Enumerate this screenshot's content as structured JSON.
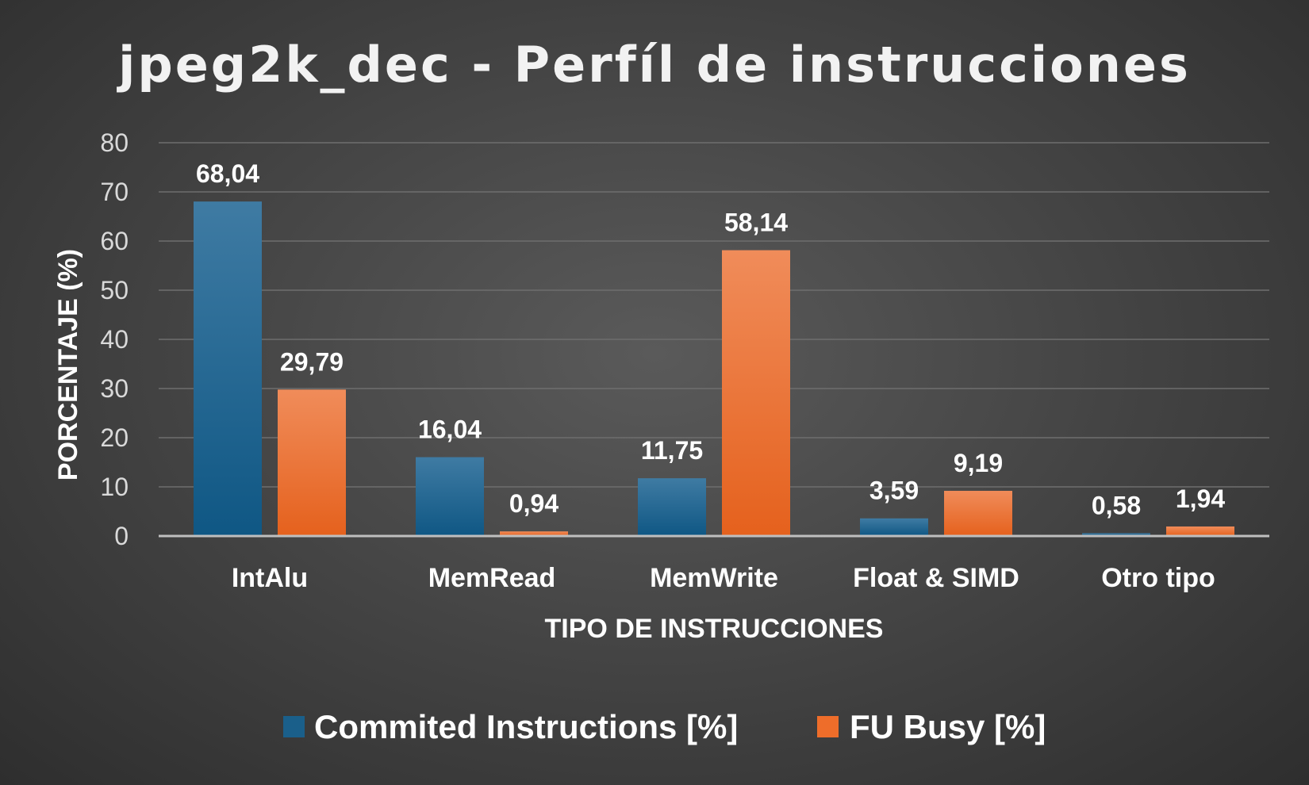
{
  "chart_data": {
    "type": "bar",
    "title": "jpeg2k_dec - Perfíl de instrucciones",
    "xlabel": "TIPO DE INSTRUCCIONES",
    "ylabel": "PORCENTAJE (%)",
    "ylim": [
      0,
      80
    ],
    "yticks": [
      "0",
      "10",
      "20",
      "30",
      "40",
      "50",
      "60",
      "70",
      "80"
    ],
    "categories": [
      "IntAlu",
      "MemRead",
      "MemWrite",
      "Float & SIMD",
      "Otro tipo"
    ],
    "series": [
      {
        "name": "Commited Instructions [%]",
        "values": [
          68.04,
          16.04,
          11.75,
          3.59,
          0.58
        ],
        "labels": [
          "68,04",
          "16,04",
          "11,75",
          "3,59",
          "0,58"
        ],
        "color": "#1a5f8a"
      },
      {
        "name": "FU Busy [%]",
        "values": [
          29.79,
          0.94,
          58.14,
          9.19,
          1.94
        ],
        "labels": [
          "29,79",
          "0,94",
          "58,14",
          "9,19",
          "1,94"
        ],
        "color": "#ee6d2a"
      }
    ],
    "grid": true,
    "legend": "bottom"
  }
}
